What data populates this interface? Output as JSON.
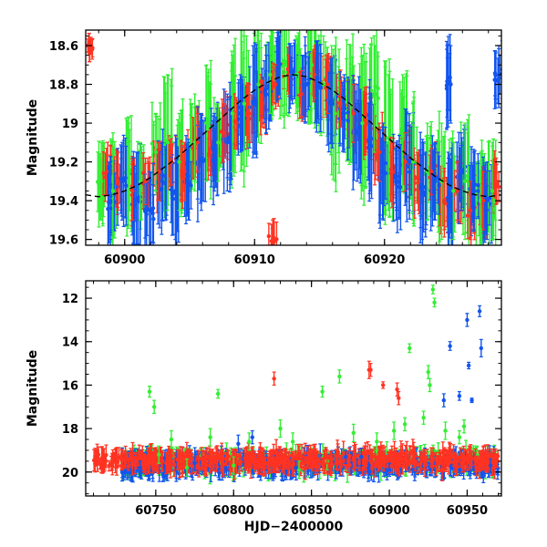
{
  "colors": {
    "green": "#33ee33",
    "red": "#ff3322",
    "blue": "#1155ee",
    "model": "#000000"
  },
  "chart_data": [
    {
      "type": "scatter",
      "panel": "top",
      "title": "",
      "xlabel": "",
      "ylabel": "Magnitude",
      "xlim": [
        60897,
        60929
      ],
      "ylim": [
        19.63,
        18.52
      ],
      "y_inverted": true,
      "x_ticks": [
        60900,
        60910,
        60920
      ],
      "y_ticks": [
        18.6,
        18.8,
        19,
        19.2,
        19.4,
        19.6
      ],
      "x_tick_labels": [
        "60900",
        "60910",
        "60920"
      ],
      "y_tick_labels": [
        "18.6",
        "18.8",
        "19",
        "19.2",
        "19.4",
        "19.6"
      ],
      "series": [
        {
          "name": "green band",
          "color": "green",
          "points": [
            [
              60898.2,
              19.3,
              0.2
            ],
            [
              60899.1,
              19.35,
              0.3
            ],
            [
              60900.3,
              19.25,
              0.25
            ],
            [
              60901.2,
              19.3,
              0.2
            ],
            [
              60902.4,
              19.15,
              0.2
            ],
            [
              60903.3,
              19.1,
              0.35
            ],
            [
              60904.2,
              19.2,
              0.25
            ],
            [
              60905.4,
              19.1,
              0.25
            ],
            [
              60906.3,
              19.0,
              0.3
            ],
            [
              60907.2,
              19.1,
              0.2
            ],
            [
              60908.3,
              18.95,
              0.3
            ],
            [
              60909.2,
              18.9,
              0.35
            ],
            [
              60910.3,
              18.8,
              0.3
            ],
            [
              60911.2,
              18.75,
              0.2
            ],
            [
              60912.3,
              18.7,
              0.25
            ],
            [
              60913.2,
              18.75,
              0.2
            ],
            [
              60914.4,
              18.7,
              0.3
            ],
            [
              60915.3,
              18.8,
              0.25
            ],
            [
              60916.2,
              18.95,
              0.35
            ],
            [
              60917.4,
              18.9,
              0.3
            ],
            [
              60918.3,
              19.0,
              0.35
            ],
            [
              60919.2,
              18.85,
              0.3
            ],
            [
              60920.3,
              19.1,
              0.35
            ],
            [
              60921.4,
              19.05,
              0.3
            ],
            [
              60922.2,
              19.2,
              0.3
            ],
            [
              60923.3,
              19.25,
              0.25
            ],
            [
              60924.4,
              19.3,
              0.3
            ],
            [
              60925.3,
              19.35,
              0.25
            ],
            [
              60926.2,
              19.3,
              0.3
            ],
            [
              60927.4,
              19.4,
              0.25
            ],
            [
              60928.3,
              19.35,
              0.25
            ]
          ]
        },
        {
          "name": "red band",
          "color": "red",
          "points": [
            [
              60897.5,
              18.62,
              0.05
            ],
            [
              60898.6,
              19.25,
              0.12
            ],
            [
              60899.5,
              19.3,
              0.15
            ],
            [
              60900.6,
              19.35,
              0.15
            ],
            [
              60901.6,
              19.3,
              0.12
            ],
            [
              60902.6,
              19.25,
              0.15
            ],
            [
              60903.6,
              19.2,
              0.12
            ],
            [
              60904.6,
              19.25,
              0.15
            ],
            [
              60905.6,
              19.1,
              0.15
            ],
            [
              60906.6,
              19.15,
              0.12
            ],
            [
              60907.6,
              19.05,
              0.15
            ],
            [
              60908.6,
              19.0,
              0.12
            ],
            [
              60909.6,
              18.95,
              0.15
            ],
            [
              60910.6,
              18.9,
              0.12
            ],
            [
              60911.6,
              18.8,
              0.1
            ],
            [
              60912.6,
              18.75,
              0.1
            ],
            [
              60913.6,
              18.85,
              0.12
            ],
            [
              60914.6,
              18.75,
              0.12
            ],
            [
              60915.6,
              18.8,
              0.15
            ],
            [
              60916.6,
              18.9,
              0.12
            ],
            [
              60917.6,
              18.95,
              0.15
            ],
            [
              60918.6,
              19.0,
              0.15
            ],
            [
              60919.6,
              19.15,
              0.15
            ],
            [
              60920.6,
              19.25,
              0.15
            ],
            [
              60921.6,
              19.2,
              0.15
            ],
            [
              60922.6,
              19.3,
              0.15
            ],
            [
              60923.6,
              19.25,
              0.12
            ],
            [
              60924.6,
              19.4,
              0.15
            ],
            [
              60925.6,
              19.35,
              0.15
            ],
            [
              60926.6,
              19.45,
              0.15
            ],
            [
              60927.6,
              19.4,
              0.15
            ],
            [
              60928.6,
              19.3,
              0.12
            ],
            [
              60911.4,
              19.6,
              0.1
            ]
          ]
        },
        {
          "name": "blue band",
          "color": "blue",
          "points": [
            [
              60898.9,
              19.4,
              0.2
            ],
            [
              60899.8,
              19.3,
              0.2
            ],
            [
              60900.9,
              19.4,
              0.25
            ],
            [
              60901.9,
              19.45,
              0.2
            ],
            [
              60902.9,
              19.3,
              0.2
            ],
            [
              60903.9,
              19.35,
              0.25
            ],
            [
              60904.9,
              19.3,
              0.2
            ],
            [
              60905.9,
              19.2,
              0.25
            ],
            [
              60906.9,
              19.15,
              0.2
            ],
            [
              60907.9,
              19.1,
              0.25
            ],
            [
              60908.9,
              18.95,
              0.2
            ],
            [
              60909.9,
              18.9,
              0.25
            ],
            [
              60910.9,
              18.85,
              0.2
            ],
            [
              60911.9,
              18.7,
              0.15
            ],
            [
              60912.9,
              18.75,
              0.15
            ],
            [
              60913.9,
              18.8,
              0.2
            ],
            [
              60914.9,
              18.8,
              0.2
            ],
            [
              60915.9,
              18.9,
              0.2
            ],
            [
              60916.9,
              18.95,
              0.2
            ],
            [
              60917.9,
              19.05,
              0.25
            ],
            [
              60918.9,
              19.1,
              0.25
            ],
            [
              60919.9,
              19.25,
              0.25
            ],
            [
              60920.9,
              19.3,
              0.2
            ],
            [
              60921.9,
              19.2,
              0.25
            ],
            [
              60922.9,
              19.35,
              0.25
            ],
            [
              60923.9,
              19.3,
              0.2
            ],
            [
              60924.9,
              19.4,
              0.25
            ],
            [
              60925.9,
              19.25,
              0.2
            ],
            [
              60926.9,
              19.35,
              0.2
            ],
            [
              60927.9,
              19.4,
              0.2
            ],
            [
              60928.8,
              18.75,
              0.15
            ],
            [
              60925.1,
              18.8,
              0.2
            ]
          ]
        }
      ],
      "model_curve": {
        "name": "sinusoid fit",
        "color": "model",
        "x": [
          60897,
          60898,
          60899,
          60900,
          60901,
          60902,
          60903,
          60904,
          60905,
          60906,
          60907,
          60908,
          60909,
          60910,
          60911,
          60912,
          60913,
          60914,
          60915,
          60916,
          60917,
          60918,
          60919,
          60920,
          60921,
          60922,
          60923,
          60924,
          60925,
          60926,
          60927,
          60928,
          60929
        ],
        "y": [
          19.37,
          19.38,
          19.37,
          19.35,
          19.32,
          19.28,
          19.23,
          19.18,
          19.12,
          19.06,
          19.0,
          18.94,
          18.88,
          18.83,
          18.79,
          18.76,
          18.75,
          18.76,
          18.79,
          18.83,
          18.88,
          18.94,
          19.0,
          19.06,
          19.12,
          19.18,
          19.23,
          19.28,
          19.32,
          19.35,
          19.37,
          19.38,
          19.37
        ]
      }
    },
    {
      "type": "scatter",
      "panel": "bottom",
      "title": "",
      "xlabel": "HJD−2400000",
      "ylabel": "Magnitude",
      "xlim": [
        60705,
        60972
      ],
      "ylim": [
        21.1,
        11.2
      ],
      "y_inverted": true,
      "x_ticks": [
        60750,
        60800,
        60850,
        60900,
        60950
      ],
      "y_ticks": [
        12,
        14,
        16,
        18,
        20
      ],
      "x_tick_labels": [
        "60750",
        "60800",
        "60850",
        "60900",
        "60950"
      ],
      "y_tick_labels": [
        "12",
        "14",
        "16",
        "18",
        "20"
      ],
      "series": [
        {
          "name": "green band",
          "color": "green",
          "points": [
            [
              60746,
              16.3,
              0.25
            ],
            [
              60749,
              17.0,
              0.3
            ],
            [
              60752,
              19.2,
              0.4
            ],
            [
              60760,
              18.5,
              0.4
            ],
            [
              60770,
              19.8,
              0.4
            ],
            [
              60785,
              18.4,
              0.4
            ],
            [
              60790,
              16.4,
              0.2
            ],
            [
              60800,
              19.7,
              0.4
            ],
            [
              60810,
              18.6,
              0.4
            ],
            [
              60830,
              18.0,
              0.4
            ],
            [
              60838,
              18.6,
              0.4
            ],
            [
              60842,
              19.9,
              0.4
            ],
            [
              60857,
              16.3,
              0.25
            ],
            [
              60860,
              19.5,
              0.4
            ],
            [
              60868,
              15.6,
              0.3
            ],
            [
              60877,
              18.2,
              0.4
            ],
            [
              60892,
              18.6,
              0.4
            ],
            [
              60903,
              18.1,
              0.4
            ],
            [
              60910,
              17.8,
              0.3
            ],
            [
              60913,
              14.3,
              0.2
            ],
            [
              60922,
              17.5,
              0.3
            ],
            [
              60925,
              15.4,
              0.3
            ],
            [
              60926,
              16.0,
              0.3
            ],
            [
              60928,
              11.6,
              0.2
            ],
            [
              60929,
              12.2,
              0.2
            ],
            [
              60936,
              18.1,
              0.4
            ],
            [
              60945,
              18.4,
              0.3
            ],
            [
              60948,
              17.9,
              0.3
            ]
          ]
        },
        {
          "name": "red band",
          "color": "red",
          "points": [
            [
              60712,
              19.3,
              0.3
            ],
            [
              60718,
              19.5,
              0.3
            ],
            [
              60728,
              19.4,
              0.4
            ],
            [
              60765,
              19.6,
              0.3
            ],
            [
              60795,
              19.4,
              0.3
            ],
            [
              60826,
              15.7,
              0.3
            ],
            [
              60845,
              19.6,
              0.3
            ],
            [
              60860,
              19.3,
              0.3
            ],
            [
              60887,
              15.3,
              0.4
            ],
            [
              60888,
              15.3,
              0.3
            ],
            [
              60896,
              16.0,
              0.15
            ],
            [
              60902,
              19.5,
              0.3
            ],
            [
              60906,
              16.6,
              0.3
            ],
            [
              60905,
              16.2,
              0.3
            ],
            [
              60930,
              19.4,
              0.3
            ],
            [
              60960,
              19.6,
              0.3
            ]
          ]
        },
        {
          "name": "blue band",
          "color": "blue",
          "points": [
            [
              60740,
              19.8,
              0.3
            ],
            [
              60775,
              19.6,
              0.3
            ],
            [
              60803,
              18.7,
              0.4
            ],
            [
              60812,
              18.4,
              0.3
            ],
            [
              60840,
              19.8,
              0.3
            ],
            [
              60872,
              19.3,
              0.3
            ],
            [
              60882,
              19.3,
              0.4
            ],
            [
              60900,
              19.9,
              0.3
            ],
            [
              60935,
              16.7,
              0.3
            ],
            [
              60939,
              14.2,
              0.2
            ],
            [
              60945,
              16.5,
              0.2
            ],
            [
              60950,
              13.0,
              0.3
            ],
            [
              60951,
              15.1,
              0.15
            ],
            [
              60953,
              16.7,
              0.1
            ],
            [
              60958,
              12.6,
              0.25
            ],
            [
              60959,
              14.3,
              0.4
            ],
            [
              60965,
              19.7,
              0.3
            ]
          ]
        }
      ],
      "baseline_cloud": {
        "magnitude_range": [
          19.0,
          20.0
        ],
        "x_range": [
          60710,
          60970
        ]
      }
    }
  ]
}
